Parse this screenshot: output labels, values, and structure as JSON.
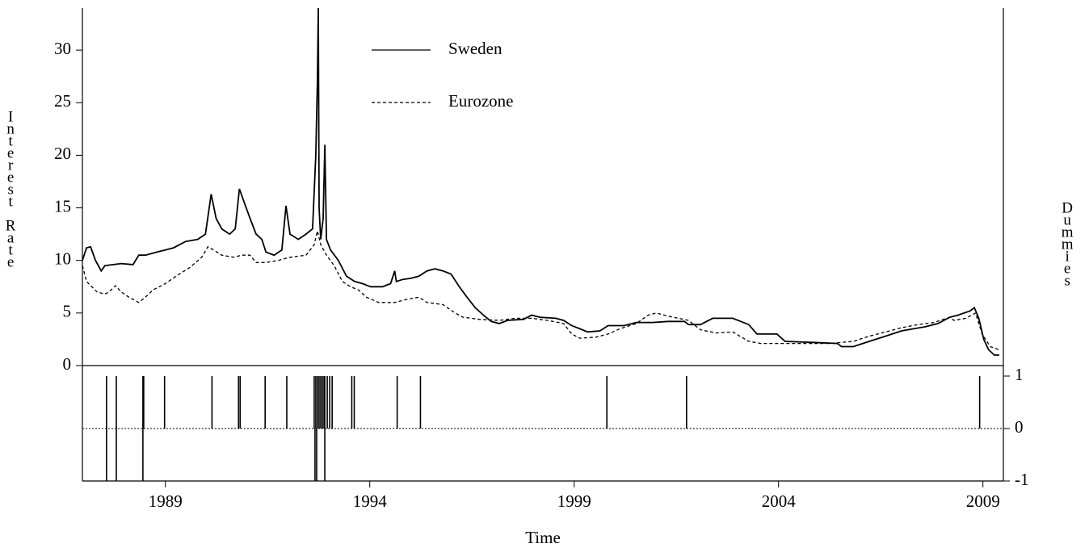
{
  "chart_data": [
    {
      "type": "line",
      "ylabel": "Interest Rate",
      "xlim": [
        1986.97,
        2009.5
      ],
      "ylim": [
        0,
        34
      ],
      "yticks": [
        0,
        5,
        10,
        15,
        20,
        25,
        30
      ],
      "legend": "top",
      "series": [
        {
          "name": "Sweden",
          "color": "#000000",
          "line_style": "solid",
          "x": [
            1986.97,
            1987.07,
            1987.17,
            1987.29,
            1987.43,
            1987.52,
            1987.72,
            1987.92,
            1988.21,
            1988.35,
            1988.51,
            1988.8,
            1989.0,
            1989.2,
            1989.49,
            1989.79,
            1989.98,
            1990.12,
            1990.24,
            1990.38,
            1990.57,
            1990.71,
            1990.81,
            1990.93,
            1991.07,
            1991.22,
            1991.36,
            1991.46,
            1991.66,
            1991.85,
            1991.95,
            1992.05,
            1992.25,
            1992.44,
            1992.6,
            1992.68,
            1992.72,
            1992.74,
            1992.76,
            1992.8,
            1992.86,
            1992.9,
            1992.94,
            1993.04,
            1993.23,
            1993.43,
            1993.63,
            1993.82,
            1994.02,
            1994.31,
            1994.51,
            1994.61,
            1994.65,
            1994.81,
            1995.0,
            1995.2,
            1995.4,
            1995.59,
            1995.79,
            1995.99,
            1996.19,
            1996.38,
            1996.58,
            1996.78,
            1996.97,
            1997.17,
            1997.37,
            1997.76,
            1997.96,
            1998.16,
            1998.55,
            1998.74,
            1998.94,
            1999.14,
            1999.33,
            1999.63,
            1999.83,
            2000.22,
            2000.52,
            2000.91,
            2001.3,
            2001.7,
            2001.8,
            2002.09,
            2002.39,
            2002.88,
            2003.27,
            2003.47,
            2003.96,
            2004.16,
            2004.85,
            2005.44,
            2005.54,
            2005.83,
            2006.22,
            2006.62,
            2007.01,
            2007.6,
            2007.9,
            2008.19,
            2008.39,
            2008.69,
            2008.79,
            2008.9,
            2009.02,
            2009.14,
            2009.28,
            2009.4
          ],
          "values": [
            10,
            11.2,
            11.3,
            10,
            9.0,
            9.5,
            9.6,
            9.7,
            9.6,
            10.5,
            10.5,
            10.8,
            11.0,
            11.2,
            11.8,
            12.0,
            12.5,
            16.3,
            14,
            13,
            12.5,
            13,
            16.8,
            15.5,
            14,
            12.5,
            12,
            10.8,
            10.5,
            11,
            15.2,
            12.5,
            12,
            12.5,
            13,
            20,
            27,
            34,
            15,
            12,
            14,
            21,
            12,
            11,
            10,
            8.5,
            8,
            7.8,
            7.5,
            7.5,
            7.8,
            9.0,
            8,
            8.2,
            8.3,
            8.5,
            9.0,
            9.2,
            9.0,
            8.7,
            7.5,
            6.5,
            5.5,
            4.8,
            4.2,
            4.0,
            4.3,
            4.4,
            4.8,
            4.6,
            4.5,
            4.3,
            3.8,
            3.5,
            3.2,
            3.3,
            3.8,
            3.8,
            4.1,
            4.1,
            4.2,
            4.2,
            3.9,
            3.9,
            4.5,
            4.5,
            3.9,
            3.0,
            3.0,
            2.3,
            2.2,
            2.1,
            1.8,
            1.8,
            2.3,
            2.8,
            3.3,
            3.7,
            4.0,
            4.6,
            4.8,
            5.2,
            5.5,
            4.5,
            2.5,
            1.5,
            1.0,
            1.0
          ]
        },
        {
          "name": "Eurozone",
          "color": "#000000",
          "line_style": "dashed",
          "x": [
            1986.97,
            1987.07,
            1987.33,
            1987.52,
            1987.62,
            1987.78,
            1987.92,
            1988.11,
            1988.35,
            1988.51,
            1988.7,
            1989.0,
            1989.3,
            1989.59,
            1989.89,
            1990.04,
            1990.18,
            1990.38,
            1990.67,
            1990.87,
            1991.07,
            1991.22,
            1991.46,
            1991.76,
            1992.05,
            1992.44,
            1992.64,
            1992.72,
            1992.8,
            1992.94,
            1993.13,
            1993.33,
            1993.53,
            1993.72,
            1993.92,
            1994.22,
            1994.61,
            1994.91,
            1995.2,
            1995.4,
            1995.79,
            1996.09,
            1996.28,
            1996.68,
            1997.17,
            1997.56,
            1997.96,
            1998.35,
            1998.74,
            1998.94,
            1999.14,
            1999.53,
            1999.83,
            2000.12,
            2000.52,
            2000.81,
            2001.01,
            2001.3,
            2001.8,
            2002.09,
            2002.48,
            2002.88,
            2003.27,
            2003.57,
            2004.06,
            2004.65,
            2005.24,
            2005.83,
            2006.22,
            2006.62,
            2007.01,
            2007.41,
            2007.8,
            2008.19,
            2008.29,
            2008.58,
            2008.82,
            2008.98,
            2009.18,
            2009.4
          ],
          "values": [
            9.5,
            8.0,
            7.0,
            6.8,
            7.0,
            7.6,
            7.0,
            6.5,
            6.0,
            6.5,
            7.2,
            7.8,
            8.6,
            9.3,
            10.3,
            11.3,
            11.0,
            10.5,
            10.3,
            10.5,
            10.5,
            9.8,
            9.8,
            10.0,
            10.3,
            10.5,
            11.5,
            12.8,
            11.5,
            10.5,
            9.5,
            8.0,
            7.5,
            7.2,
            6.5,
            6.0,
            6.0,
            6.3,
            6.5,
            6.0,
            5.8,
            5.0,
            4.6,
            4.4,
            4.3,
            4.5,
            4.5,
            4.3,
            4.0,
            3.0,
            2.6,
            2.7,
            3.0,
            3.5,
            4.0,
            4.8,
            5.0,
            4.7,
            4.3,
            3.4,
            3.1,
            3.2,
            2.3,
            2.1,
            2.1,
            2.1,
            2.1,
            2.3,
            2.8,
            3.2,
            3.6,
            3.9,
            4.1,
            4.6,
            4.3,
            4.5,
            5.0,
            3.0,
            1.8,
            1.5
          ]
        }
      ]
    },
    {
      "type": "spike",
      "xlabel": "Time",
      "ylabel": "Dummies",
      "xlim": [
        1986.97,
        2009.5
      ],
      "xticks": [
        1989,
        1994,
        1999,
        2004,
        2009
      ],
      "ylim": [
        -1,
        1
      ],
      "yticks": [
        -1,
        0,
        1
      ],
      "color": "#000000",
      "x": [
        1987.56,
        1987.56,
        1987.8,
        1987.8,
        1988.45,
        1988.45,
        1988.47,
        1988.98,
        1990.14,
        1990.79,
        1990.83,
        1991.44,
        1991.97,
        1992.64,
        1992.66,
        1992.68,
        1992.7,
        1992.72,
        1992.76,
        1992.8,
        1992.84,
        1992.88,
        1992.9,
        1992.9,
        1992.96,
        1993.02,
        1993.08,
        1993.56,
        1993.62,
        1994.67,
        1995.24,
        1999.8,
        2001.75,
        2008.92
      ],
      "values": [
        1,
        -1,
        1,
        -1,
        1,
        -1,
        1,
        1,
        1,
        1,
        1,
        1,
        1,
        1,
        -1,
        1,
        -1,
        1,
        1,
        1,
        1,
        1,
        1,
        -1,
        1,
        1,
        1,
        1,
        1,
        1,
        1,
        1,
        1,
        1
      ]
    }
  ]
}
